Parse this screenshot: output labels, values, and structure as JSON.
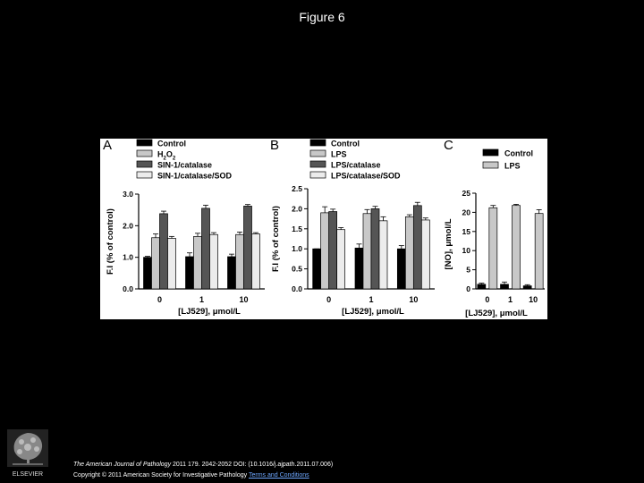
{
  "page": {
    "title": "Figure 6"
  },
  "footer": {
    "journal": "The American Journal of Pathology",
    "citation": " 2011 179. 2042-2052 DOI: (10.1016/j.ajpath.2011.07.006)",
    "copyright": "Copyright © 2011 American Society for Investigative Pathology",
    "terms": "Terms and Conditions",
    "publisher": "ELSEVIER"
  },
  "chart_data": [
    {
      "panel": "A",
      "type": "bar",
      "xlabel": "[LJ529], μmol/L",
      "ylabel": "F.I (% of control)",
      "ylim": [
        0,
        3.0
      ],
      "yticks": [
        "0.0",
        "1.0",
        "2.0",
        "3.0"
      ],
      "categories": [
        "0",
        "1",
        "10"
      ],
      "series": [
        {
          "name": "Control",
          "color": "#000000",
          "values": [
            1.0,
            1.02,
            1.02
          ],
          "errors": [
            0.03,
            0.12,
            0.08
          ]
        },
        {
          "name": "H2O2",
          "color": "#c8c8c8",
          "values": [
            1.62,
            1.66,
            1.72
          ],
          "errors": [
            0.12,
            0.1,
            0.08
          ]
        },
        {
          "name": "SIN-1/catalase",
          "color": "#555555",
          "values": [
            2.38,
            2.55,
            2.62
          ],
          "errors": [
            0.08,
            0.1,
            0.05
          ]
        },
        {
          "name": "SIN-1/catalase/SOD",
          "color": "#ececec",
          "values": [
            1.6,
            1.72,
            1.74
          ],
          "errors": [
            0.06,
            0.06,
            0.04
          ]
        }
      ]
    },
    {
      "panel": "B",
      "type": "bar",
      "xlabel": "[LJ529], μmol/L",
      "ylabel": "F.I (% of control)",
      "ylim": [
        0,
        2.5
      ],
      "yticks": [
        "0.0",
        "0.5",
        "1.0",
        "1.5",
        "2.0",
        "2.5"
      ],
      "categories": [
        "0",
        "1",
        "10"
      ],
      "series": [
        {
          "name": "Control",
          "color": "#000000",
          "values": [
            1.0,
            1.02,
            1.0
          ],
          "errors": [
            0.0,
            0.1,
            0.08
          ]
        },
        {
          "name": "LPS",
          "color": "#c8c8c8",
          "values": [
            1.9,
            1.88,
            1.8
          ],
          "errors": [
            0.15,
            0.1,
            0.05
          ]
        },
        {
          "name": "LPS/catalase",
          "color": "#555555",
          "values": [
            1.93,
            2.0,
            2.08
          ],
          "errors": [
            0.06,
            0.06,
            0.08
          ]
        },
        {
          "name": "LPS/catalase/SOD",
          "color": "#ececec",
          "values": [
            1.48,
            1.7,
            1.72
          ],
          "errors": [
            0.05,
            0.1,
            0.05
          ]
        }
      ]
    },
    {
      "panel": "C",
      "type": "bar",
      "xlabel": "[LJ529], μmol/L",
      "ylabel": "[NO], μmol/L",
      "ylim": [
        0,
        25
      ],
      "yticks": [
        "0",
        "5",
        "10",
        "15",
        "20",
        "25"
      ],
      "categories": [
        "0",
        "1",
        "10"
      ],
      "series": [
        {
          "name": "Control",
          "color": "#000000",
          "values": [
            1.2,
            1.2,
            0.8
          ],
          "errors": [
            0.3,
            0.6,
            0.3
          ]
        },
        {
          "name": "LPS",
          "color": "#c8c8c8",
          "values": [
            21.2,
            21.8,
            19.7
          ],
          "errors": [
            0.6,
            0.3,
            1.0
          ]
        }
      ]
    }
  ]
}
